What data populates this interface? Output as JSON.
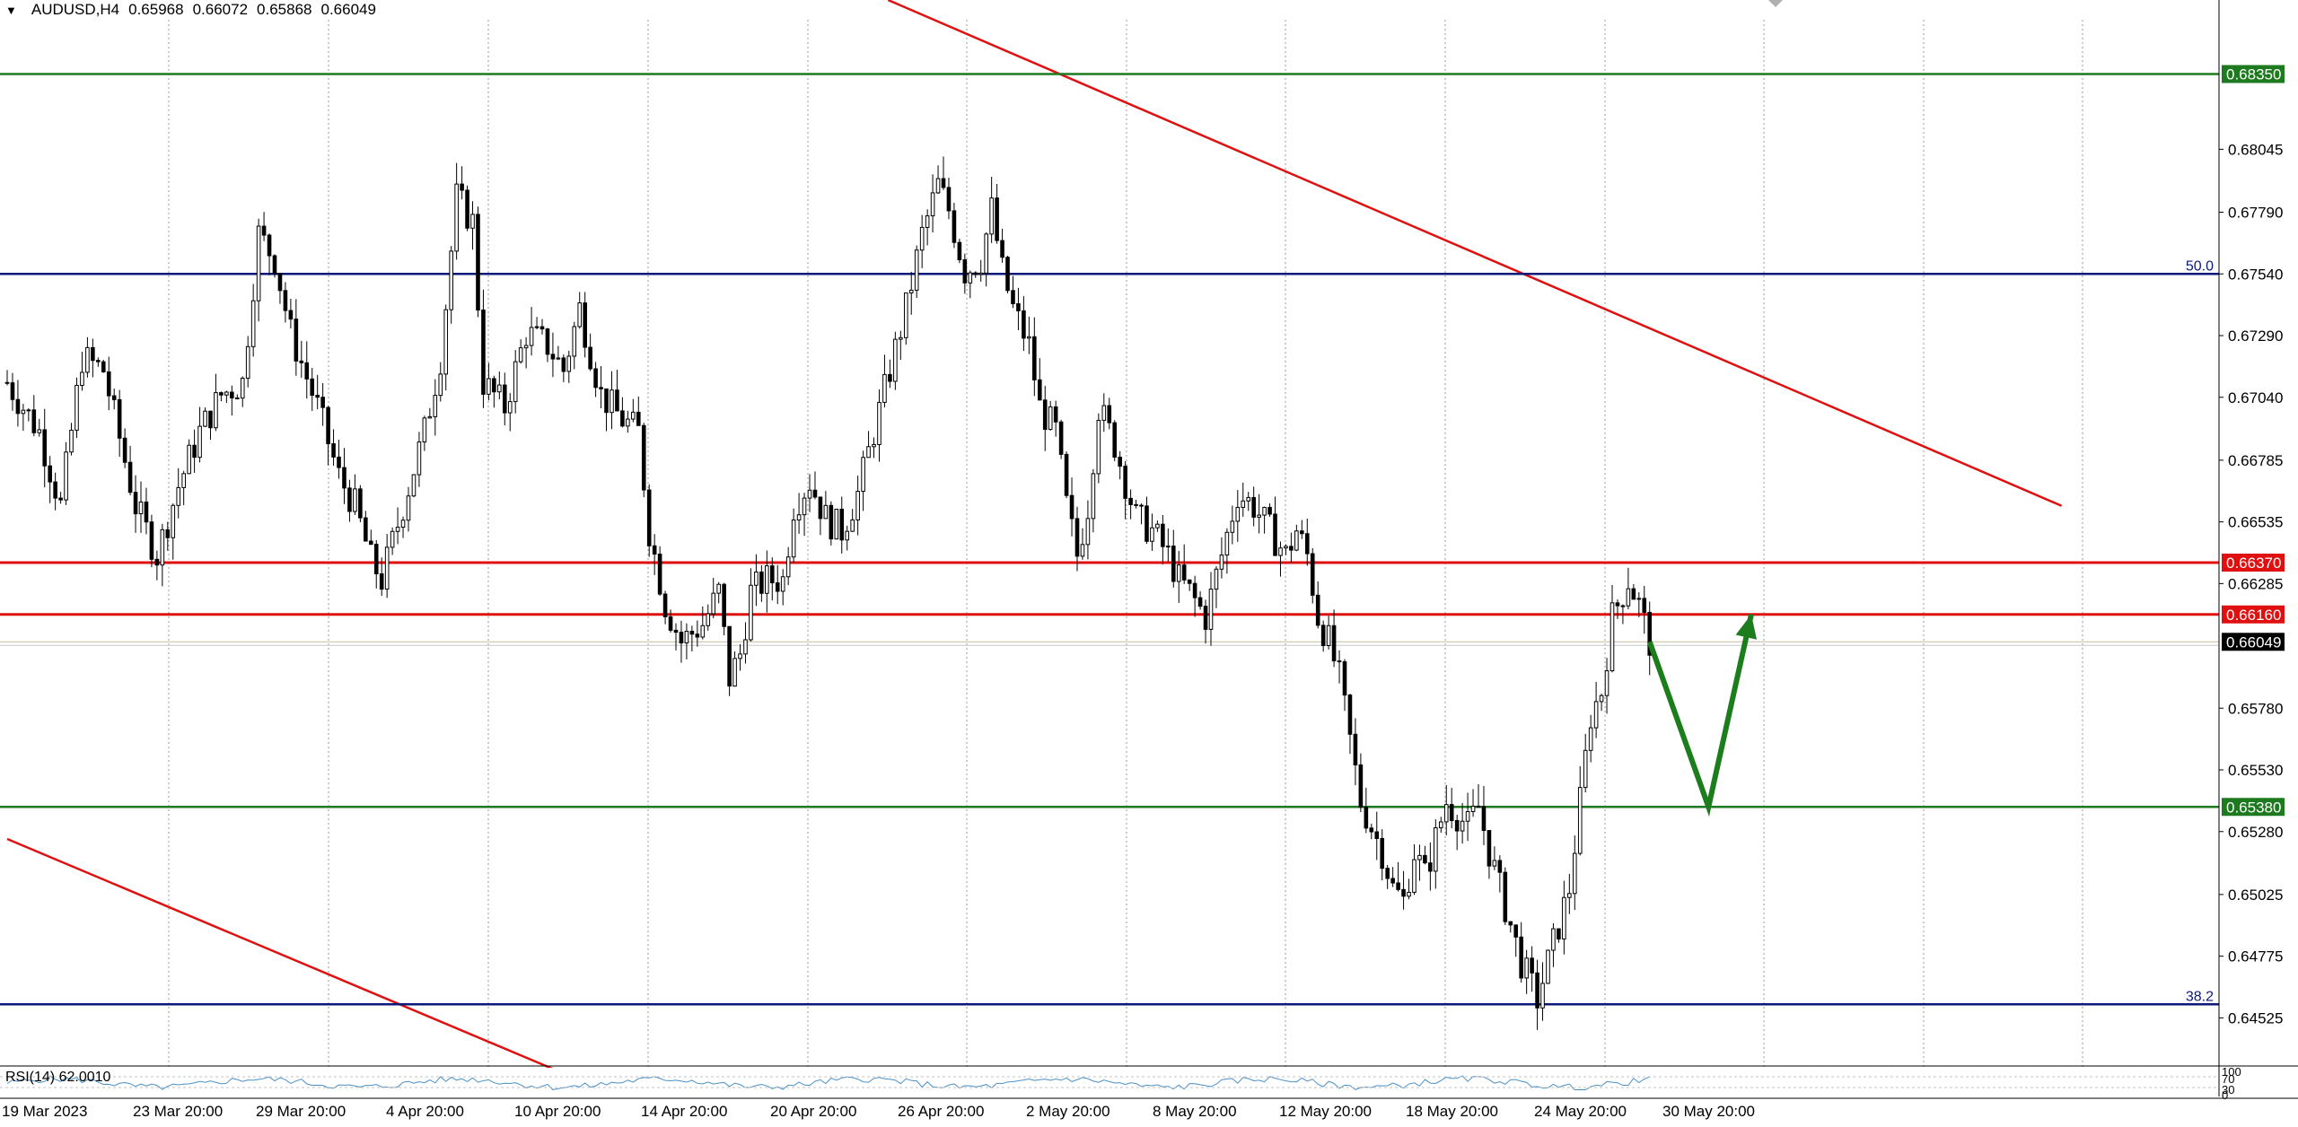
{
  "header": {
    "symbol": "AUDUSD,H4",
    "open": "0.65968",
    "high": "0.66072",
    "low": "0.65868",
    "close": "0.66049"
  },
  "rsi": {
    "label": "RSI(14) 62.0010",
    "scale_labels": [
      "100",
      "70",
      "30",
      "0"
    ]
  },
  "colors": {
    "background": "#ffffff",
    "grid": "#9a9a9a",
    "candle": "#000000",
    "resistance": "#e01010",
    "support": "#1e7a1e",
    "fib": "#0a1a7a",
    "trendline": "#e01010",
    "arrow": "#1b7d1b",
    "rsi_line": "#4a90c8",
    "current_price": "#000000"
  },
  "chart_data": {
    "type": "candlestick",
    "symbol": "AUDUSD",
    "timeframe": "H4",
    "x_tick_labels": [
      "19 Mar 2023",
      "23 Mar 20:00",
      "29 Mar 20:00",
      "4 Apr 20:00",
      "10 Apr 20:00",
      "14 Apr 20:00",
      "20 Apr 20:00",
      "26 Apr 20:00",
      "2 May 20:00",
      "8 May 20:00",
      "12 May 20:00",
      "18 May 20:00",
      "24 May 20:00",
      "30 May 20:00"
    ],
    "y_tick_labels": [
      "0.68045",
      "0.67790",
      "0.67540",
      "0.67290",
      "0.67040",
      "0.66785",
      "0.66535",
      "0.66285",
      "0.65780",
      "0.65530",
      "0.65280",
      "0.65025",
      "0.64775",
      "0.64525"
    ],
    "ylim": [
      0.6433,
      0.6857
    ],
    "grid": "vertical dotted",
    "ohlc_anchors": [
      [
        0,
        0.671
      ],
      [
        6,
        0.669
      ],
      [
        10,
        0.666
      ],
      [
        14,
        0.672
      ],
      [
        18,
        0.6715
      ],
      [
        24,
        0.666
      ],
      [
        28,
        0.664
      ],
      [
        32,
        0.6668
      ],
      [
        36,
        0.669
      ],
      [
        40,
        0.6705
      ],
      [
        44,
        0.671
      ],
      [
        47,
        0.677
      ],
      [
        50,
        0.676
      ],
      [
        53,
        0.673
      ],
      [
        58,
        0.67
      ],
      [
        62,
        0.6672
      ],
      [
        65,
        0.666
      ],
      [
        68,
        0.6638
      ],
      [
        70,
        0.663
      ],
      [
        74,
        0.666
      ],
      [
        78,
        0.669
      ],
      [
        81,
        0.672
      ],
      [
        84,
        0.6785
      ],
      [
        87,
        0.6775
      ],
      [
        89,
        0.671
      ],
      [
        93,
        0.67
      ],
      [
        97,
        0.673
      ],
      [
        101,
        0.6725
      ],
      [
        104,
        0.6715
      ],
      [
        107,
        0.674
      ],
      [
        111,
        0.6705
      ],
      [
        115,
        0.6695
      ],
      [
        118,
        0.669
      ],
      [
        120,
        0.665
      ],
      [
        123,
        0.662
      ],
      [
        126,
        0.6605
      ],
      [
        130,
        0.6612
      ],
      [
        133,
        0.6625
      ],
      [
        135,
        0.659
      ],
      [
        137,
        0.66
      ],
      [
        139,
        0.6625
      ],
      [
        142,
        0.663
      ],
      [
        145,
        0.663
      ],
      [
        147,
        0.666
      ],
      [
        150,
        0.667
      ],
      [
        153,
        0.6655
      ],
      [
        156,
        0.665
      ],
      [
        159,
        0.6665
      ],
      [
        162,
        0.669
      ],
      [
        165,
        0.6715
      ],
      [
        168,
        0.674
      ],
      [
        171,
        0.677
      ],
      [
        174,
        0.679
      ],
      [
        176,
        0.678
      ],
      [
        179,
        0.6755
      ],
      [
        182,
        0.676
      ],
      [
        184,
        0.678
      ],
      [
        186,
        0.6755
      ],
      [
        188,
        0.674
      ],
      [
        191,
        0.6725
      ],
      [
        193,
        0.67
      ],
      [
        196,
        0.669
      ],
      [
        198,
        0.666
      ],
      [
        200,
        0.664
      ],
      [
        202,
        0.666
      ],
      [
        204,
        0.67
      ],
      [
        207,
        0.6685
      ],
      [
        209,
        0.667
      ],
      [
        211,
        0.6655
      ],
      [
        214,
        0.665
      ],
      [
        217,
        0.664
      ],
      [
        219,
        0.663
      ],
      [
        221,
        0.6625
      ],
      [
        224,
        0.6615
      ],
      [
        227,
        0.664
      ],
      [
        230,
        0.6665
      ],
      [
        233,
        0.666
      ],
      [
        236,
        0.665
      ],
      [
        239,
        0.664
      ],
      [
        241,
        0.665
      ],
      [
        243,
        0.664
      ],
      [
        245,
        0.6615
      ],
      [
        247,
        0.6605
      ],
      [
        249,
        0.659
      ],
      [
        251,
        0.6565
      ],
      [
        253,
        0.654
      ],
      [
        255,
        0.653
      ],
      [
        257,
        0.652
      ],
      [
        259,
        0.6505
      ],
      [
        261,
        0.65
      ],
      [
        263,
        0.652
      ],
      [
        265,
        0.651
      ],
      [
        267,
        0.6525
      ],
      [
        269,
        0.654
      ],
      [
        271,
        0.6535
      ],
      [
        273,
        0.653
      ],
      [
        275,
        0.6538
      ],
      [
        277,
        0.652
      ],
      [
        279,
        0.6505
      ],
      [
        281,
        0.649
      ],
      [
        283,
        0.6475
      ],
      [
        285,
        0.6465
      ],
      [
        286,
        0.646
      ],
      [
        288,
        0.6475
      ],
      [
        290,
        0.649
      ],
      [
        292,
        0.6505
      ],
      [
        294,
        0.654
      ],
      [
        296,
        0.6575
      ],
      [
        298,
        0.6585
      ],
      [
        300,
        0.6615
      ],
      [
        302,
        0.6625
      ],
      [
        303,
        0.663
      ],
      [
        305,
        0.662
      ],
      [
        307,
        0.6605
      ]
    ],
    "levels": [
      {
        "price": 0.6835,
        "label": "0.68350",
        "kind": "support"
      },
      {
        "price": 0.6754,
        "label": "50.0",
        "kind": "fib"
      },
      {
        "price": 0.6637,
        "label": "0.66370",
        "kind": "resistance"
      },
      {
        "price": 0.6616,
        "label": "0.66160",
        "kind": "resistance"
      },
      {
        "price": 0.66049,
        "label": "0.66049",
        "kind": "current"
      },
      {
        "price": 0.6538,
        "label": "0.65380",
        "kind": "support"
      },
      {
        "price": 0.6458,
        "label": "38.2",
        "kind": "fib"
      }
    ],
    "trendlines": [
      {
        "from_bar": 170,
        "from_price": 0.686,
        "to_bar": 384,
        "to_price": 0.666
      },
      {
        "from_bar": 0,
        "from_price": 0.6525,
        "to_bar": 104,
        "to_price": 0.643
      }
    ],
    "forecast_path": [
      {
        "bar": 307,
        "price": 0.66049
      },
      {
        "bar": 318,
        "price": 0.6538
      },
      {
        "bar": 326,
        "price": 0.6616
      }
    ],
    "rsi_current": 62.001
  }
}
